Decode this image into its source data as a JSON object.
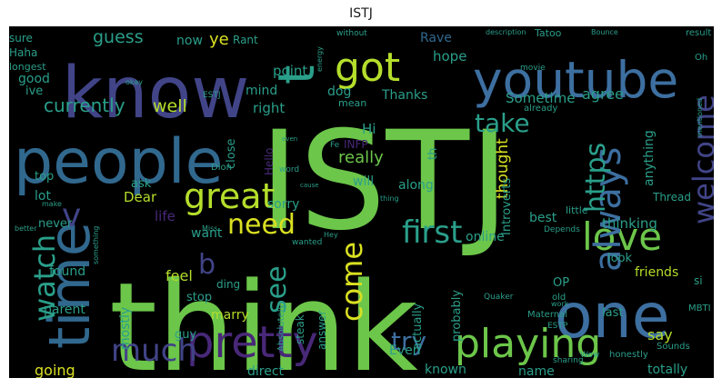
{
  "title": "ISTJ",
  "palette": {
    "background": "#000000",
    "green": "#6cc64a",
    "lime": "#b5de2b",
    "yellow": "#d9e021",
    "teal": "#2a9f8a",
    "blue": "#3d6fa0",
    "steelblue": "#31688e",
    "indigo": "#414487",
    "purple": "#482878"
  },
  "words": [
    {
      "text": "ISTJ",
      "color": "#6cc64a"
    },
    {
      "text": "think",
      "color": "#6cc64a"
    },
    {
      "text": "know",
      "color": "#414487"
    },
    {
      "text": "people",
      "color": "#31688e"
    },
    {
      "text": "youtube",
      "color": "#3d6fa0"
    },
    {
      "text": "time",
      "color": "#31688e"
    },
    {
      "text": "one",
      "color": "#3d6fa0"
    },
    {
      "text": "pretty",
      "color": "#482878"
    },
    {
      "text": "playing",
      "color": "#6cc64a"
    },
    {
      "text": "got",
      "color": "#b5de2b"
    },
    {
      "text": "great",
      "color": "#b5de2b"
    },
    {
      "text": "love",
      "color": "#6cc64a"
    },
    {
      "text": "always",
      "color": "#3d6fa0"
    },
    {
      "text": "welcome",
      "color": "#414487"
    },
    {
      "text": "https",
      "color": "#2a9f8a"
    },
    {
      "text": "t",
      "color": "#2a9f8a"
    },
    {
      "text": "first",
      "color": "#2a9f8a"
    },
    {
      "text": "need",
      "color": "#d9e021"
    },
    {
      "text": "much",
      "color": "#414487"
    },
    {
      "text": "watch",
      "color": "#2a9f8a"
    },
    {
      "text": "v",
      "color": "#414487"
    },
    {
      "text": "b",
      "color": "#414487"
    },
    {
      "text": "see",
      "color": "#2a9f8a"
    },
    {
      "text": "come",
      "color": "#d9e021"
    },
    {
      "text": "take",
      "color": "#2a9f8a"
    },
    {
      "text": "try",
      "color": "#3d6fa0"
    },
    {
      "text": "currently",
      "color": "#2a9f8a"
    },
    {
      "text": "guess",
      "color": "#2a9f8a"
    },
    {
      "text": "well",
      "color": "#b5de2b"
    },
    {
      "text": "point",
      "color": "#2a9f8a"
    },
    {
      "text": "hope",
      "color": "#2a9f8a"
    },
    {
      "text": "Thanks",
      "color": "#2a9f8a"
    },
    {
      "text": "Sometime",
      "color": "#2a9f8a"
    },
    {
      "text": "agree",
      "color": "#2a9f8a"
    },
    {
      "text": "Rave",
      "color": "#31688e"
    },
    {
      "text": "ye",
      "color": "#d9e021"
    },
    {
      "text": "Rant",
      "color": "#2a9f8a"
    },
    {
      "text": "now",
      "color": "#2a9f8a"
    },
    {
      "text": "sure",
      "color": "#2a9f8a"
    },
    {
      "text": "Haha",
      "color": "#2a9f8a"
    },
    {
      "text": "longest",
      "color": "#2a9f8a"
    },
    {
      "text": "ive",
      "color": "#2a9f8a"
    },
    {
      "text": "good",
      "color": "#2a9f8a"
    },
    {
      "text": "right",
      "color": "#2a9f8a"
    },
    {
      "text": "mind",
      "color": "#2a9f8a"
    },
    {
      "text": "dog",
      "color": "#2a9f8a"
    },
    {
      "text": "Hi",
      "color": "#2a9f8a"
    },
    {
      "text": "really",
      "color": "#6cc64a"
    },
    {
      "text": "thought",
      "color": "#d9e021"
    },
    {
      "text": "th",
      "color": "#2a9f8a"
    },
    {
      "text": "will",
      "color": "#2a9f8a"
    },
    {
      "text": "along",
      "color": "#2a9f8a"
    },
    {
      "text": "Introverts",
      "color": "#2a9f8a"
    },
    {
      "text": "anything",
      "color": "#2a9f8a"
    },
    {
      "text": "thinking",
      "color": "#2a9f8a"
    },
    {
      "text": "best",
      "color": "#2a9f8a"
    },
    {
      "text": "online",
      "color": "#2a9f8a"
    },
    {
      "text": "friends",
      "color": "#b5de2b"
    },
    {
      "text": "look",
      "color": "#2a9f8a"
    },
    {
      "text": "say",
      "color": "#b5de2b"
    },
    {
      "text": "last",
      "color": "#2a9f8a"
    },
    {
      "text": "OP",
      "color": "#2a9f8a"
    },
    {
      "text": "si",
      "color": "#2a9f8a"
    },
    {
      "text": "MBTI",
      "color": "#2a9f8a"
    },
    {
      "text": "totally",
      "color": "#2a9f8a"
    },
    {
      "text": "honestly",
      "color": "#2a9f8a"
    },
    {
      "text": "name",
      "color": "#2a9f8a"
    },
    {
      "text": "known",
      "color": "#2a9f8a"
    },
    {
      "text": "Even",
      "color": "#2a9f8a"
    },
    {
      "text": "direct",
      "color": "#2a9f8a"
    },
    {
      "text": "going",
      "color": "#d9e021"
    },
    {
      "text": "mostly",
      "color": "#2a9f8a"
    },
    {
      "text": "parent",
      "color": "#2a9f8a"
    },
    {
      "text": "guy",
      "color": "#2a9f8a"
    },
    {
      "text": "marry",
      "color": "#b5de2b"
    },
    {
      "text": "ding",
      "color": "#2a9f8a"
    },
    {
      "text": "stop",
      "color": "#2a9f8a"
    },
    {
      "text": "feel",
      "color": "#b5de2b"
    },
    {
      "text": "found",
      "color": "#2a9f8a"
    },
    {
      "text": "want",
      "color": "#2a9f8a"
    },
    {
      "text": "life",
      "color": "#482878"
    },
    {
      "text": "Dear",
      "color": "#b5de2b"
    },
    {
      "text": "ask",
      "color": "#2a9f8a"
    },
    {
      "text": "sorry",
      "color": "#2a9f8a"
    },
    {
      "text": "lot",
      "color": "#2a9f8a"
    },
    {
      "text": "top",
      "color": "#2a9f8a"
    },
    {
      "text": "never",
      "color": "#2a9f8a"
    },
    {
      "text": "close",
      "color": "#2a9f8a"
    },
    {
      "text": "Hello",
      "color": "#482878"
    },
    {
      "text": "mean",
      "color": "#2a9f8a"
    },
    {
      "text": "INFP",
      "color": "#482878"
    },
    {
      "text": "answer",
      "color": "#2a9f8a"
    },
    {
      "text": "steak",
      "color": "#2a9f8a"
    },
    {
      "text": "actually",
      "color": "#2a9f8a"
    },
    {
      "text": "probably",
      "color": "#2a9f8a"
    },
    {
      "text": "Thread",
      "color": "#2a9f8a"
    },
    {
      "text": "little",
      "color": "#2a9f8a"
    },
    {
      "text": "Maternal",
      "color": "#2a9f8a"
    },
    {
      "text": "ESTP",
      "color": "#2a9f8a"
    },
    {
      "text": "Sounds",
      "color": "#2a9f8a"
    },
    {
      "text": "sharing",
      "color": "#2a9f8a"
    },
    {
      "text": "Wow",
      "color": "#2a9f8a"
    },
    {
      "text": "old",
      "color": "#2a9f8a"
    },
    {
      "text": "Tatoo",
      "color": "#2a9f8a"
    },
    {
      "text": "without",
      "color": "#2a9f8a"
    },
    {
      "text": "description",
      "color": "#2a9f8a"
    },
    {
      "text": "Bounce",
      "color": "#2a9f8a"
    },
    {
      "text": "result",
      "color": "#2a9f8a"
    },
    {
      "text": "Oh",
      "color": "#2a9f8a"
    },
    {
      "text": "movie",
      "color": "#2a9f8a"
    },
    {
      "text": "already",
      "color": "#2a9f8a"
    },
    {
      "text": "ESTJ",
      "color": "#2a9f8a"
    },
    {
      "text": "Fe",
      "color": "#2a9f8a"
    },
    {
      "text": "word",
      "color": "#2a9f8a"
    },
    {
      "text": "Dion",
      "color": "#2a9f8a"
    },
    {
      "text": "Miss",
      "color": "#2a9f8a"
    },
    {
      "text": "Absolutely",
      "color": "#2a9f8a"
    },
    {
      "text": "Hey",
      "color": "#2a9f8a"
    },
    {
      "text": "wanted",
      "color": "#2a9f8a"
    },
    {
      "text": "Depends",
      "color": "#2a9f8a"
    },
    {
      "text": "mentioned",
      "color": "#2a9f8a"
    },
    {
      "text": "energy",
      "color": "#2a9f8a"
    },
    {
      "text": "Quaker",
      "color": "#2a9f8a"
    },
    {
      "text": "better",
      "color": "#2a9f8a"
    },
    {
      "text": "make",
      "color": "#2a9f8a"
    },
    {
      "text": "something",
      "color": "#2a9f8a"
    },
    {
      "text": "thing",
      "color": "#2a9f8a"
    },
    {
      "text": "okay",
      "color": "#2a9f8a"
    },
    {
      "text": "work",
      "color": "#2a9f8a"
    },
    {
      "text": "even",
      "color": "#2a9f8a"
    },
    {
      "text": "cause",
      "color": "#2a9f8a"
    }
  ]
}
